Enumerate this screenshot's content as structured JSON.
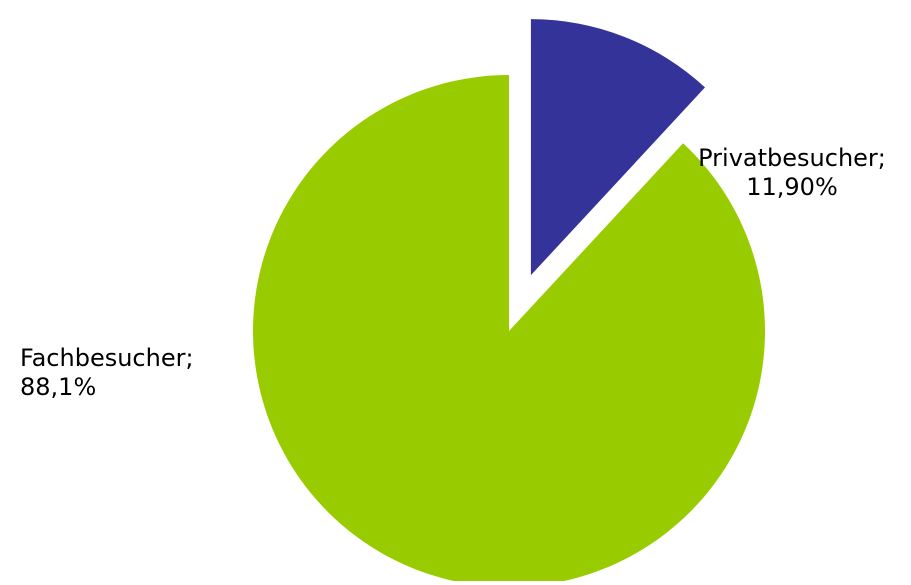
{
  "chart_data": {
    "type": "pie",
    "slices": [
      {
        "key": "fachbesucher",
        "name": "Fachbesucher",
        "value": 88.1,
        "label_lines": [
          "Fachbesucher;",
          "88,1%"
        ],
        "color": "#99CC00",
        "exploded": false
      },
      {
        "key": "privatbesucher",
        "name": "Privatbesucher",
        "value": 11.9,
        "label_lines": [
          "Privatbesucher;",
          "11,90%"
        ],
        "color": "#333399",
        "exploded": true
      }
    ],
    "start_angle": "12 o'clock",
    "direction": "clockwise",
    "legend": "none",
    "data_labels": "category name and percentage"
  }
}
